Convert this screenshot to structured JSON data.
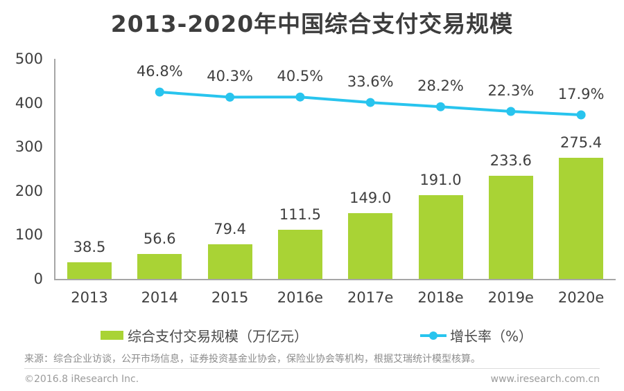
{
  "page": {
    "title": "2013-2020年中国综合支付交易规模"
  },
  "chart_data": {
    "type": "bar+line",
    "title": "2013-2020年中国综合支付交易规模",
    "categories": [
      "2013",
      "2014",
      "2015",
      "2016e",
      "2017e",
      "2018e",
      "2019e",
      "2020e"
    ],
    "series": [
      {
        "name": "综合支付交易规模（万亿元）",
        "type": "bar",
        "color": "#a9d335",
        "values": [
          38.5,
          56.6,
          79.4,
          111.5,
          149.0,
          191.0,
          233.6,
          275.4
        ]
      },
      {
        "name": "增长率（%）",
        "type": "line",
        "color": "#28c4ee",
        "categories": [
          "2014",
          "2015",
          "2016e",
          "2017e",
          "2018e",
          "2019e",
          "2020e"
        ],
        "values": [
          46.8,
          40.3,
          40.5,
          33.6,
          28.2,
          22.3,
          17.9
        ]
      }
    ],
    "y_axis": {
      "ticks": [
        500,
        400,
        300,
        200,
        100,
        0
      ],
      "min": 0,
      "max": 500,
      "label": ""
    },
    "grid": false,
    "legend_position": "bottom",
    "data_labels": true
  },
  "legend": {
    "bar_label": "综合支付交易规模（万亿元）",
    "line_label": "增长率（%）"
  },
  "footer": {
    "source": "来源：综合企业访谈，公开市场信息，证券投资基金业协会，保险业协会等机构，根据艾瑞统计模型核算。",
    "copyright": "©2016.8 iResearch Inc.",
    "website": "www.iresearch.com.cn"
  },
  "colors": {
    "bar": "#a9d335",
    "line": "#28c4ee",
    "title": "#3d3d3d",
    "axis": "#a6a6a6",
    "text": "#3f3f3f"
  }
}
